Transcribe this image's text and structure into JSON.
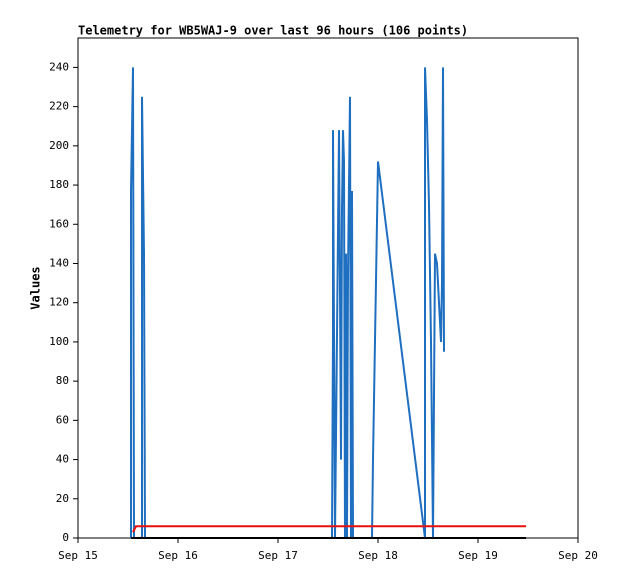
{
  "chart_data": {
    "type": "line",
    "title": "Telemetry for WB5WAJ-9 over last 96 hours (106 points)",
    "y_label": "Values",
    "xlim": [
      15,
      20
    ],
    "xticks": [
      {
        "value": 15,
        "label": "Sep 15"
      },
      {
        "value": 16,
        "label": "Sep 16"
      },
      {
        "value": 17,
        "label": "Sep 17"
      },
      {
        "value": 18,
        "label": "Sep 18"
      },
      {
        "value": 19,
        "label": "Sep 19"
      },
      {
        "value": 20,
        "label": "Sep 20"
      }
    ],
    "ylim": [
      0,
      255
    ],
    "yticks": [
      0,
      20,
      40,
      60,
      80,
      100,
      120,
      140,
      160,
      180,
      200,
      220,
      240
    ],
    "series": [
      {
        "color": "#1f6fc0",
        "x": [
          15.53,
          15.53,
          15.55,
          15.56,
          15.64,
          15.64,
          15.66,
          15.67,
          17.54,
          17.55,
          17.55,
          17.57,
          17.61,
          17.63,
          17.64,
          17.65,
          17.66,
          17.67,
          17.68,
          17.69,
          17.7,
          17.72,
          17.73,
          17.74,
          17.75,
          17.94,
          17.95,
          18.0,
          18.47,
          18.47,
          18.49,
          18.51,
          18.53,
          18.55,
          18.57,
          18.59,
          18.61,
          18.63,
          18.64,
          18.65,
          18.66
        ],
        "values": [
          0,
          177,
          240,
          0,
          0,
          225,
          145,
          0,
          0,
          105,
          208,
          0,
          208,
          40,
          168,
          208,
          192,
          0,
          145,
          0,
          135,
          225,
          0,
          177,
          0,
          0,
          40,
          192,
          0,
          240,
          213,
          170,
          100,
          0,
          145,
          140,
          120,
          100,
          130,
          240,
          95
        ]
      },
      {
        "color": "#e8100c",
        "x": [
          15.55,
          15.58,
          19.48
        ],
        "values": [
          3,
          6,
          6
        ]
      },
      {
        "color": "#000000",
        "x": [
          15.53,
          19.48
        ],
        "values": [
          0,
          0
        ]
      }
    ]
  }
}
